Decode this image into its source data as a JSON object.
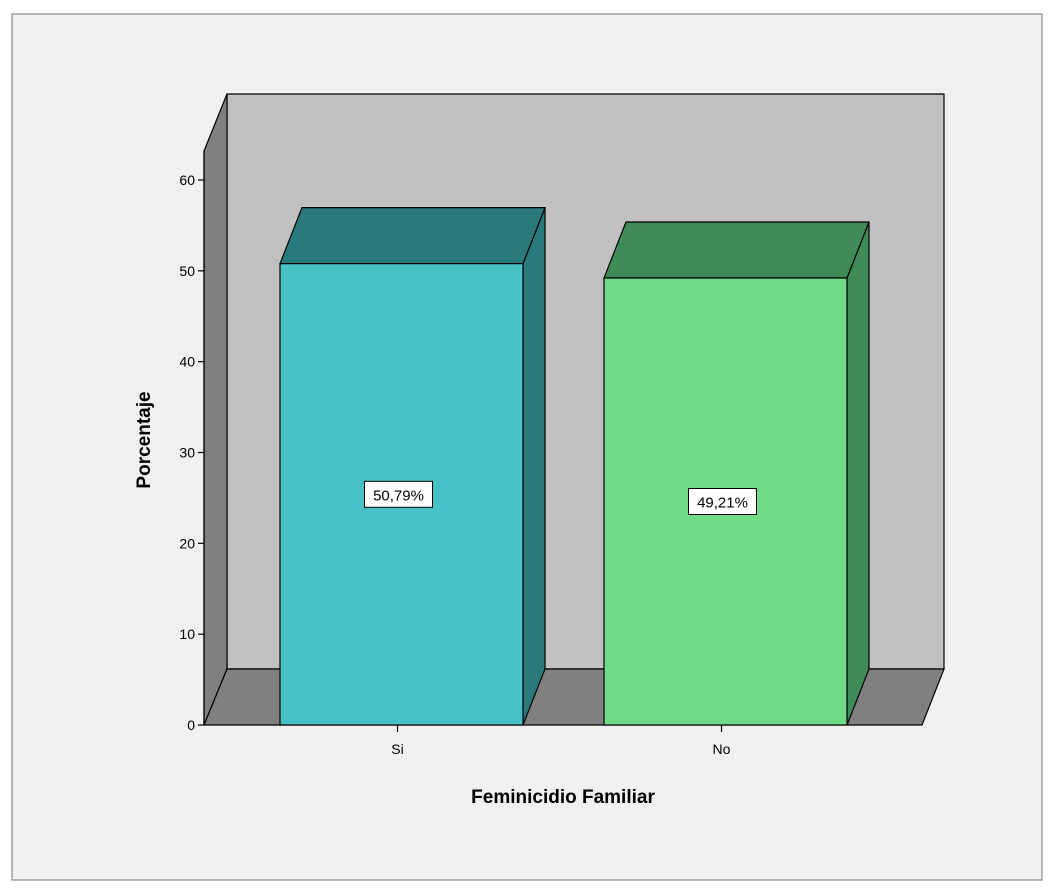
{
  "chart_data": {
    "type": "bar",
    "title": "",
    "xlabel": "Feminicidio Familiar",
    "ylabel": "Porcentaje",
    "categories": [
      "Si",
      "No"
    ],
    "values": [
      50.79,
      49.21
    ],
    "data_labels": [
      "50,79%",
      "49,21%"
    ],
    "yticks": [
      "0",
      "10",
      "20",
      "30",
      "40",
      "50",
      "60"
    ],
    "ylim": [
      0,
      65
    ],
    "style": "3d",
    "grid": false,
    "legend": "none",
    "colors": {
      "panel_background": "#f0f0f0",
      "back_wall": "#c0c0c0",
      "side_wall": "#808080",
      "floor": "#808080",
      "bars": [
        {
          "front": "#48c1c6",
          "top": "#2a7a7d",
          "side": "#2a7a7d"
        },
        {
          "front": "#70db86",
          "top": "#3f8b58",
          "side": "#3f8b58"
        }
      ]
    }
  }
}
